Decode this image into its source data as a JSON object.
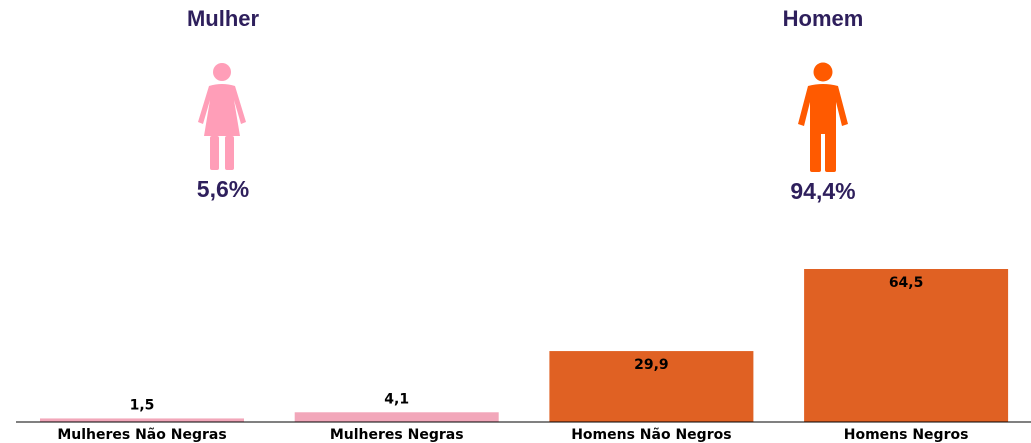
{
  "panels": {
    "female": {
      "title": "Mulher",
      "percent": "5,6%",
      "icon": "woman-icon",
      "color": "#ff9eb8"
    },
    "male": {
      "title": "Homem",
      "percent": "94,4%",
      "icon": "man-icon",
      "color": "#ff5a00"
    }
  },
  "colors": {
    "title_text": "#2e1f5c",
    "female_bar": "#f2a7ba",
    "male_bar": "#e06123"
  },
  "chart_data": {
    "type": "bar",
    "categories": [
      "Mulheres Não Negras",
      "Mulheres Negras",
      "Homens Não Negros",
      "Homens Negros"
    ],
    "values": [
      1.5,
      4.1,
      29.9,
      64.5
    ],
    "value_labels": [
      "1,5",
      "4,1",
      "29,9",
      "64,5"
    ],
    "bar_colors": [
      "#f2a7ba",
      "#f2a7ba",
      "#e06123",
      "#e06123"
    ],
    "label_position": [
      "above",
      "above",
      "inside",
      "inside"
    ],
    "title": "",
    "xlabel": "",
    "ylabel": "",
    "ylim": [
      0,
      64.5
    ],
    "grid": false,
    "legend": "none"
  }
}
